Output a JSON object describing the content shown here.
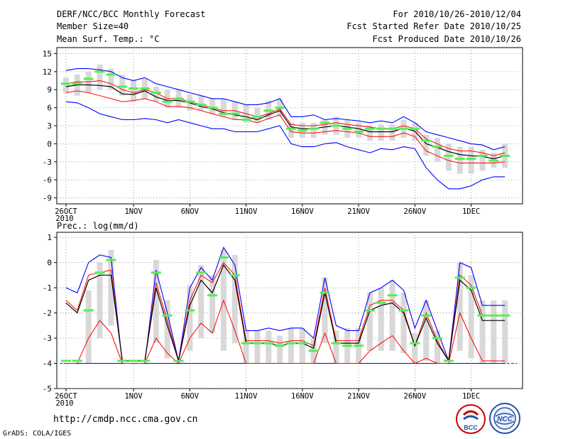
{
  "header": {
    "title": "DERF/NCC/BCC Monthly Forecast",
    "member_size": "Member Size=40",
    "variable": "Mean Surf. Temp.: °C",
    "period": "For 2010/10/26-2010/12/04",
    "started": "Fcst Started Refer Date 2010/10/25",
    "produced": "Fcst Produced Date 2010/10/26"
  },
  "footer": {
    "url": "http://cmdp.ncc.cma.gov.cn",
    "credit": "GrADS: COLA/IGES",
    "logo_bcc": "BCC",
    "logo_ncc": "NCC"
  },
  "colors": {
    "envelope": "#0000ff",
    "spread": "#ff0000",
    "mean": "#000000",
    "median": "#55ee55",
    "box": "#d8d8d8",
    "baseline": "#3333cc"
  },
  "chart_data": [
    {
      "type": "line",
      "title": "Mean Surf. Temp.: °C",
      "ylim": [
        -10,
        16
      ],
      "yticks": [
        -9,
        -6,
        -3,
        0,
        3,
        6,
        9,
        12,
        15
      ],
      "xlabels": [
        {
          "day": 0,
          "label": "26OCT",
          "sub": "2010"
        },
        {
          "day": 6,
          "label": "1NOV",
          "sub": ""
        },
        {
          "day": 11,
          "label": "6NOV",
          "sub": ""
        },
        {
          "day": 16,
          "label": "11NOV",
          "sub": ""
        },
        {
          "day": 21,
          "label": "16NOV",
          "sub": ""
        },
        {
          "day": 26,
          "label": "21NOV",
          "sub": ""
        },
        {
          "day": 31,
          "label": "26NOV",
          "sub": ""
        },
        {
          "day": 36,
          "label": "1DEC",
          "sub": ""
        }
      ],
      "x_days": [
        0,
        1,
        2,
        3,
        4,
        5,
        6,
        7,
        8,
        9,
        10,
        11,
        12,
        13,
        14,
        15,
        16,
        17,
        18,
        19,
        20,
        21,
        22,
        23,
        24,
        25,
        26,
        27,
        28,
        29,
        30,
        31,
        32,
        33,
        34,
        35,
        36,
        37,
        38,
        39
      ],
      "max": [
        12.2,
        12.5,
        12.5,
        12.3,
        12.0,
        11.0,
        10.5,
        11.0,
        10.0,
        9.5,
        9.0,
        8.5,
        8.0,
        7.5,
        7.5,
        7.0,
        6.5,
        6.5,
        6.8,
        7.5,
        4.5,
        4.5,
        4.8,
        4.0,
        4.2,
        4.0,
        3.8,
        3.5,
        3.8,
        3.5,
        4.5,
        3.5,
        2.0,
        1.5,
        1.0,
        0.5,
        0.0,
        -0.2,
        -1.0,
        -0.5
      ],
      "upper": [
        10.0,
        10.3,
        10.3,
        10.5,
        10.0,
        9.0,
        8.5,
        9.0,
        8.5,
        7.5,
        7.5,
        7.0,
        6.5,
        6.0,
        5.5,
        5.5,
        5.0,
        4.5,
        5.0,
        5.8,
        3.2,
        3.0,
        3.0,
        3.2,
        3.5,
        3.2,
        3.0,
        2.8,
        2.5,
        2.5,
        3.0,
        2.5,
        0.8,
        0.0,
        -0.8,
        -1.2,
        -1.2,
        -1.5,
        -2.0,
        -1.5
      ],
      "mean": [
        9.5,
        9.8,
        9.8,
        9.7,
        9.5,
        8.3,
        8.2,
        8.8,
        7.8,
        7.2,
        7.2,
        6.8,
        6.2,
        5.8,
        5.2,
        4.8,
        4.5,
        4.0,
        4.8,
        5.5,
        2.8,
        2.5,
        2.5,
        2.8,
        3.0,
        2.8,
        2.5,
        2.0,
        2.0,
        2.0,
        2.6,
        2.1,
        0.0,
        -0.6,
        -1.3,
        -1.8,
        -2.0,
        -2.1,
        -2.5,
        -2.0
      ],
      "lower": [
        8.5,
        8.8,
        8.5,
        8.0,
        7.5,
        7.0,
        7.2,
        7.5,
        7.0,
        6.2,
        6.2,
        6.0,
        5.5,
        5.0,
        4.5,
        4.0,
        4.0,
        3.5,
        4.2,
        4.8,
        2.0,
        1.8,
        1.8,
        2.0,
        2.2,
        2.0,
        1.8,
        1.2,
        1.2,
        1.2,
        1.8,
        1.2,
        -1.2,
        -2.0,
        -2.8,
        -3.2,
        -3.2,
        -3.2,
        -3.2,
        -3.0
      ],
      "min": [
        7.0,
        6.8,
        6.0,
        5.0,
        4.5,
        4.0,
        4.0,
        4.2,
        4.0,
        3.5,
        4.0,
        3.5,
        3.0,
        2.5,
        2.5,
        2.0,
        2.0,
        2.0,
        2.5,
        3.0,
        0.0,
        -0.5,
        -0.5,
        0.0,
        0.2,
        -0.5,
        -1.0,
        -1.5,
        -0.8,
        -1.0,
        -0.5,
        -0.8,
        -4.0,
        -6.0,
        -7.5,
        -7.5,
        -7.0,
        -6.0,
        -5.5,
        -5.5
      ],
      "median": [
        10.0,
        10.0,
        10.8,
        12.0,
        11.5,
        9.5,
        9.2,
        9.2,
        8.5,
        7.0,
        7.5,
        7.0,
        6.5,
        6.0,
        5.0,
        5.0,
        4.0,
        4.5,
        5.5,
        6.0,
        2.5,
        2.2,
        2.5,
        3.5,
        3.0,
        2.5,
        2.0,
        2.5,
        2.5,
        2.5,
        2.5,
        2.5,
        0.5,
        -0.5,
        -2.0,
        -2.5,
        -2.5,
        -2.0,
        -2.8,
        -2.0
      ],
      "box_top": [
        11.0,
        11.5,
        12.0,
        13.2,
        12.5,
        11.5,
        10.5,
        10.8,
        9.5,
        9.0,
        9.0,
        8.2,
        8.0,
        7.5,
        7.5,
        7.0,
        6.5,
        6.0,
        7.2,
        7.5,
        3.5,
        3.5,
        3.5,
        4.0,
        4.5,
        4.0,
        3.5,
        3.0,
        3.2,
        3.2,
        4.0,
        3.5,
        1.5,
        1.0,
        0.0,
        -0.5,
        -0.5,
        -1.0,
        -1.5,
        0.0
      ],
      "box_bot": [
        8.5,
        8.0,
        8.5,
        9.0,
        9.0,
        8.0,
        7.0,
        7.5,
        7.0,
        6.0,
        6.0,
        5.5,
        5.5,
        5.0,
        4.5,
        4.0,
        3.5,
        3.5,
        4.0,
        4.5,
        1.0,
        1.0,
        1.0,
        1.5,
        1.5,
        1.0,
        1.0,
        0.5,
        0.5,
        0.5,
        1.0,
        0.5,
        -2.0,
        -3.0,
        -4.5,
        -5.0,
        -5.0,
        -4.5,
        -4.0,
        -4.0
      ]
    },
    {
      "type": "line",
      "title": "Prec.: log(mm/d)",
      "ylim": [
        -5,
        1.2
      ],
      "yticks": [
        -5,
        -4,
        -3,
        -2,
        -1,
        0,
        1
      ],
      "xlabels": [
        {
          "day": 0,
          "label": "26OCT",
          "sub": "2010"
        },
        {
          "day": 6,
          "label": "1NOV",
          "sub": ""
        },
        {
          "day": 11,
          "label": "6NOV",
          "sub": ""
        },
        {
          "day": 16,
          "label": "11NOV",
          "sub": ""
        },
        {
          "day": 21,
          "label": "16NOV",
          "sub": ""
        },
        {
          "day": 26,
          "label": "21NOV",
          "sub": ""
        },
        {
          "day": 31,
          "label": "26NOV",
          "sub": ""
        },
        {
          "day": 36,
          "label": "1DEC",
          "sub": ""
        }
      ],
      "x_days": [
        0,
        1,
        2,
        3,
        4,
        5,
        6,
        7,
        8,
        9,
        10,
        11,
        12,
        13,
        14,
        15,
        16,
        17,
        18,
        19,
        20,
        21,
        22,
        23,
        24,
        25,
        26,
        27,
        28,
        29,
        30,
        31,
        32,
        33,
        34,
        35,
        36,
        37,
        38,
        39
      ],
      "baseline": -4,
      "max": [
        -1.0,
        -1.2,
        0.0,
        0.3,
        0.2,
        -4.0,
        -4.0,
        -4.0,
        -0.3,
        -2.0,
        -3.9,
        -1.0,
        -0.2,
        -0.7,
        0.6,
        -0.1,
        -2.7,
        -2.7,
        -2.6,
        -2.7,
        -2.6,
        -2.6,
        -3.0,
        -0.6,
        -2.5,
        -2.7,
        -2.7,
        -1.2,
        -1.0,
        -0.7,
        -1.1,
        -2.6,
        -1.5,
        -2.7,
        -3.9,
        0.0,
        -0.2,
        -1.7,
        -1.7,
        -1.7
      ],
      "upper": [
        -1.5,
        -1.9,
        -0.5,
        -0.4,
        -0.3,
        -3.9,
        -3.9,
        -3.9,
        -0.8,
        -2.3,
        -3.9,
        -1.5,
        -0.5,
        -0.8,
        0.0,
        -0.5,
        -3.1,
        -3.1,
        -3.1,
        -3.2,
        -3.1,
        -3.1,
        -3.3,
        -1.0,
        -3.1,
        -3.1,
        -3.1,
        -1.7,
        -1.5,
        -1.5,
        -1.9,
        -3.3,
        -2.0,
        -3.1,
        -3.9,
        -0.5,
        -0.9,
        -2.1,
        -2.1,
        -2.1
      ],
      "mean": [
        -1.6,
        -2.0,
        -0.7,
        -0.5,
        -0.5,
        -3.9,
        -3.9,
        -3.9,
        -1.0,
        -2.5,
        -3.9,
        -1.7,
        -0.7,
        -1.2,
        -0.1,
        -0.7,
        -3.2,
        -3.2,
        -3.2,
        -3.3,
        -3.2,
        -3.2,
        -3.4,
        -1.2,
        -3.2,
        -3.2,
        -3.2,
        -1.9,
        -1.7,
        -1.6,
        -2.0,
        -3.3,
        -2.2,
        -3.2,
        -3.9,
        -0.7,
        -1.1,
        -2.3,
        -2.3,
        -2.3
      ],
      "lower": [
        -4.0,
        -4.0,
        -3.0,
        -2.3,
        -2.8,
        -4.0,
        -4.0,
        -4.0,
        -3.0,
        -3.6,
        -4.0,
        -3.0,
        -2.4,
        -2.8,
        -1.5,
        -2.7,
        -4.0,
        -4.0,
        -4.0,
        -4.0,
        -4.0,
        -4.0,
        -4.0,
        -2.8,
        -4.0,
        -4.0,
        -4.0,
        -3.5,
        -3.2,
        -2.9,
        -3.5,
        -4.0,
        -3.8,
        -4.0,
        -4.0,
        -2.0,
        -3.0,
        -3.9,
        -3.9,
        -3.9
      ],
      "min": [
        -4.0,
        -4.0,
        -4.0,
        -4.0,
        -4.0,
        -4.0,
        -4.0,
        -4.0,
        -4.0,
        -4.0,
        -4.0,
        -4.0,
        -4.0,
        -4.0,
        -4.0,
        -4.0,
        -4.0,
        -4.0,
        -4.0,
        -4.0,
        -4.0,
        -4.0,
        -4.0,
        -4.0,
        -4.0,
        -4.0,
        -4.0,
        -4.0,
        -4.0,
        -4.0,
        -4.0,
        -4.0,
        -4.0,
        -4.0,
        -4.0,
        -4.0,
        -4.0,
        -4.0,
        -4.0,
        -4.0
      ],
      "median": [
        -3.9,
        -3.9,
        -1.9,
        -0.4,
        0.1,
        -3.9,
        -3.9,
        -3.9,
        -0.4,
        -2.1,
        -3.9,
        -1.9,
        -0.4,
        -1.3,
        0.2,
        -0.5,
        -3.2,
        -3.2,
        -3.2,
        -3.3,
        -3.2,
        -3.2,
        -3.5,
        -1.2,
        -3.2,
        -3.3,
        -3.3,
        -1.9,
        -1.6,
        -1.3,
        -1.9,
        -3.2,
        -2.1,
        -3.0,
        -3.9,
        -0.6,
        -1.0,
        -2.1,
        -2.1,
        -2.1
      ],
      "box_top": [
        -4.0,
        -4.0,
        -1.1,
        0.0,
        0.5,
        -4.0,
        -4.0,
        -4.0,
        0.1,
        -1.5,
        -4.0,
        -0.9,
        -0.1,
        -0.5,
        0.5,
        0.3,
        -2.7,
        -2.7,
        -2.7,
        -2.9,
        -2.6,
        -2.6,
        -3.0,
        -0.6,
        -2.7,
        -2.6,
        -2.6,
        -1.2,
        -1.0,
        -0.7,
        -1.2,
        -2.8,
        -1.5,
        -2.7,
        -4.0,
        0.0,
        -0.5,
        -1.5,
        -1.5,
        -1.5
      ],
      "box_bot": [
        -4.0,
        -4.0,
        -4.0,
        -3.0,
        -2.5,
        -4.0,
        -4.0,
        -4.0,
        -3.2,
        -3.8,
        -4.0,
        -3.5,
        -3.0,
        -2.8,
        -3.5,
        -3.2,
        -4.0,
        -4.0,
        -4.0,
        -4.0,
        -4.0,
        -4.0,
        -4.0,
        -3.2,
        -4.0,
        -4.0,
        -4.0,
        -3.5,
        -3.5,
        -3.5,
        -3.6,
        -4.0,
        -3.9,
        -4.0,
        -4.0,
        -3.5,
        -3.8,
        -4.0,
        -4.0,
        -4.0
      ]
    }
  ]
}
